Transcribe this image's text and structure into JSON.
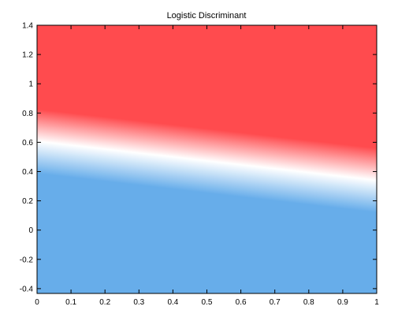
{
  "chart_data": {
    "type": "heatmap",
    "title": "Logistic Discriminant",
    "xlabel": "",
    "ylabel": "",
    "xlim": [
      0,
      1
    ],
    "ylim": [
      -0.433,
      1.4
    ],
    "x_ticks": [
      0,
      0.1,
      0.2,
      0.3,
      0.4,
      0.5,
      0.6,
      0.7,
      0.8,
      0.9,
      1
    ],
    "x_tick_labels": [
      "0",
      "0.1",
      "0.2",
      "0.3",
      "0.4",
      "0.5",
      "0.6",
      "0.7",
      "0.8",
      "0.9",
      "1"
    ],
    "y_ticks": [
      -0.4,
      -0.2,
      0,
      0.2,
      0.4,
      0.6,
      0.8,
      1,
      1.2,
      1.4
    ],
    "y_tick_labels": [
      "-0.4",
      "-0.2",
      "0",
      "0.2",
      "0.4",
      "0.6",
      "0.8",
      "1",
      "1.2",
      "1.4"
    ],
    "decision_boundary": {
      "x": [
        0,
        1
      ],
      "y": [
        0.607,
        0.34
      ]
    },
    "transition_width": 0.22,
    "colors": {
      "above": "#ff4b4e",
      "boundary": "#ffffff",
      "below": "#67adea"
    },
    "grid": false,
    "legend": "none"
  }
}
